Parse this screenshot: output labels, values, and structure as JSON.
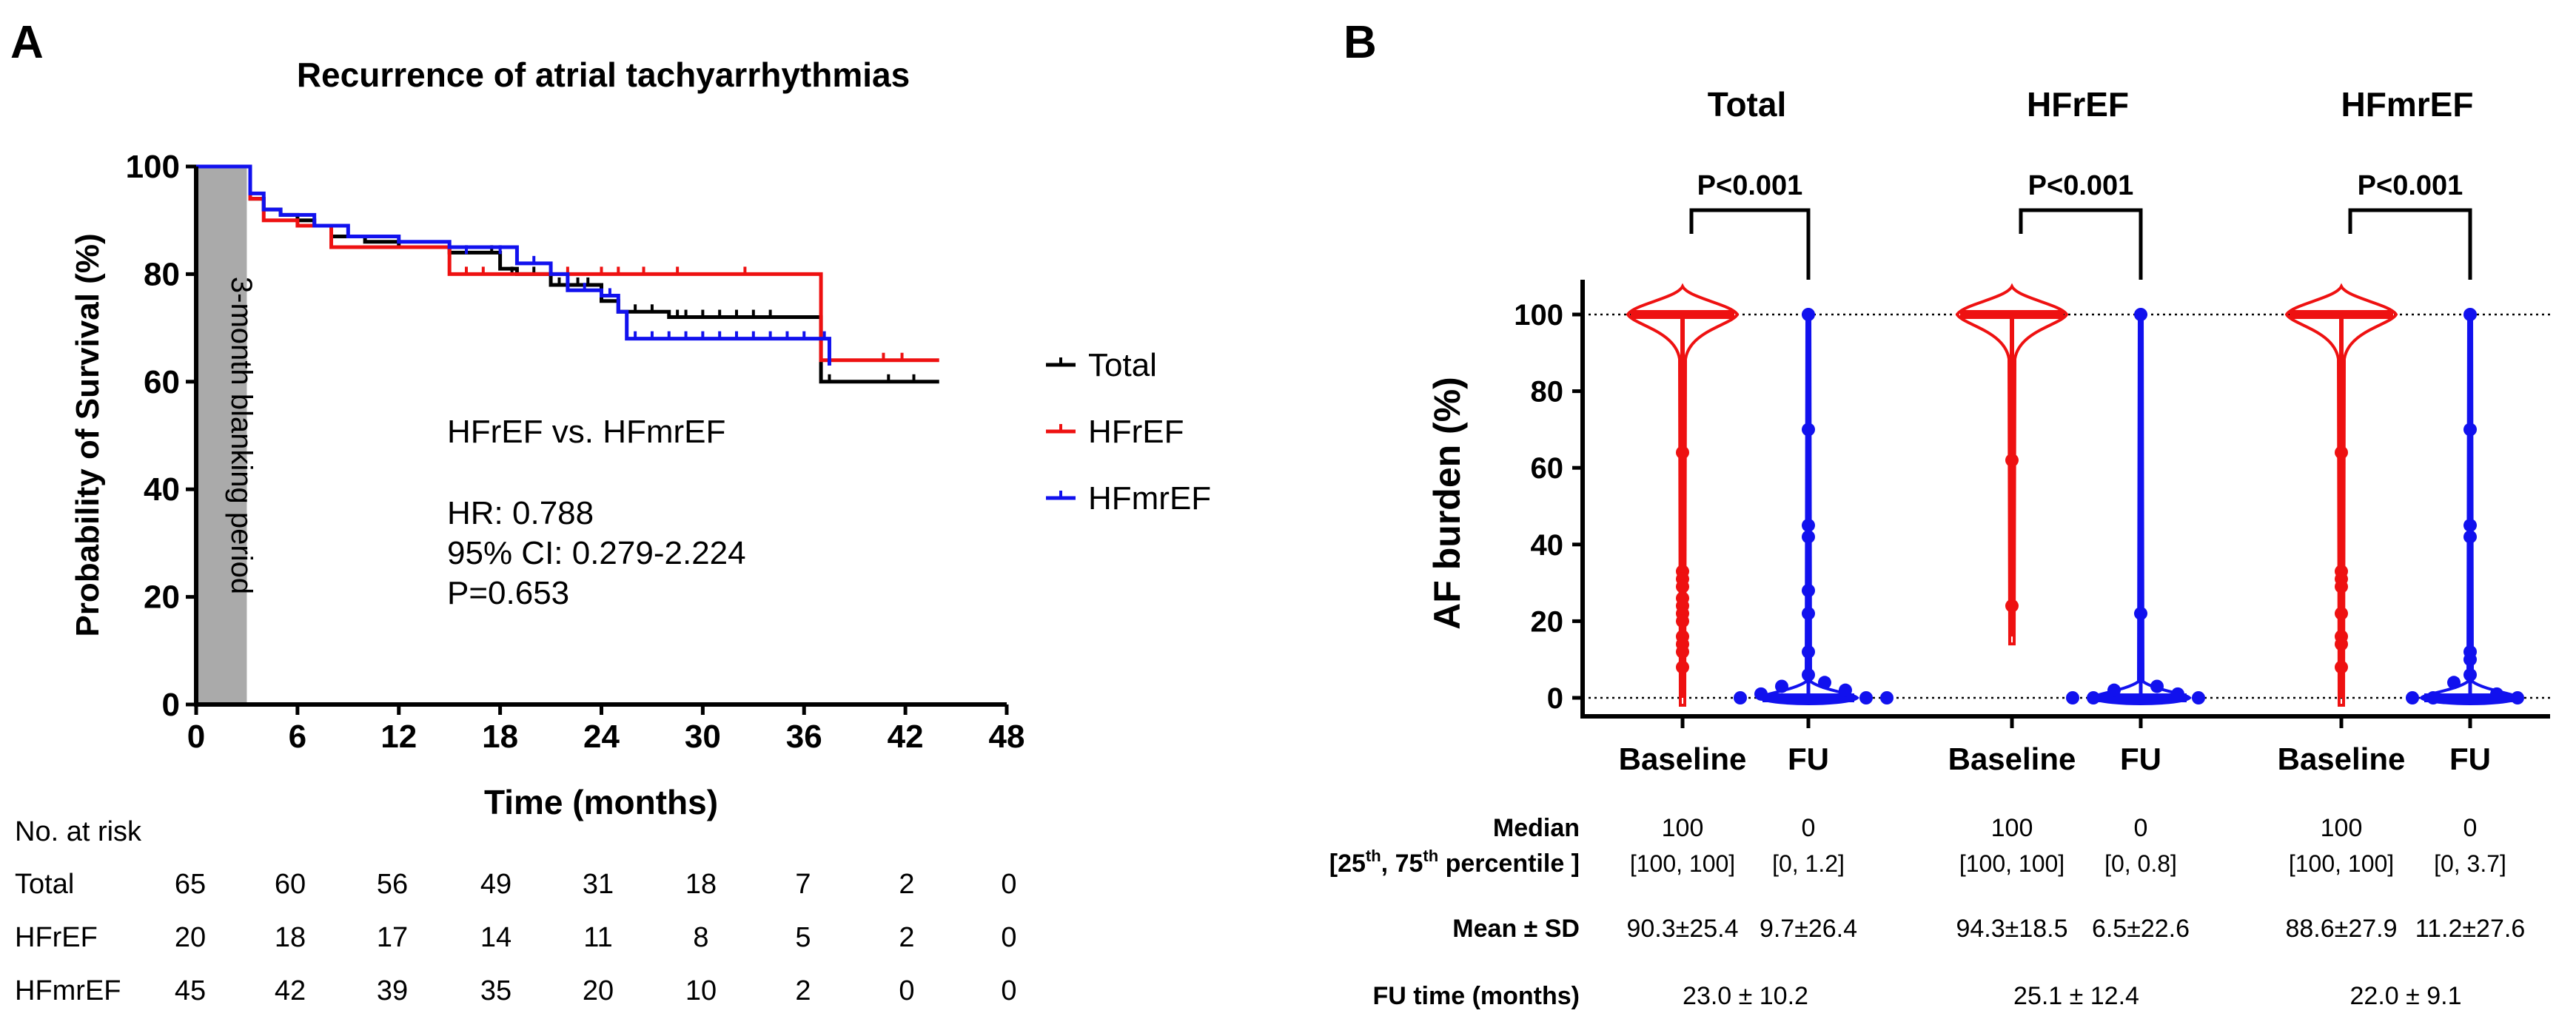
{
  "panel_a": {
    "label": "A",
    "risk_title": "No. at risk",
    "risk_rows": [
      {
        "name": "Total",
        "values": [
          "65",
          "60",
          "56",
          "49",
          "31",
          "18",
          "7",
          "2",
          "0"
        ]
      },
      {
        "name": "HFrEF",
        "values": [
          "20",
          "18",
          "17",
          "14",
          "11",
          "8",
          "5",
          "2",
          "0"
        ]
      },
      {
        "name": "HFmrEF",
        "values": [
          "45",
          "42",
          "39",
          "35",
          "20",
          "10",
          "2",
          "0",
          "0"
        ]
      }
    ]
  },
  "panel_b": {
    "label": "B",
    "stats": {
      "median_label": "Median",
      "percentile_label_1": "[25",
      "percentile_sup_1": "th",
      "percentile_label_2": ", 75",
      "percentile_sup_2": "th",
      "percentile_label_3": " percentile ]",
      "mean_label": "Mean ± SD",
      "fu_label": "FU time (months)",
      "columns": [
        {
          "median": "100",
          "iqr": "[100, 100]",
          "mean_sd": "90.3±25.4"
        },
        {
          "median": "0",
          "iqr": "[0, 1.2]",
          "mean_sd": "9.7±26.4"
        },
        {
          "median": "100",
          "iqr": "[100, 100]",
          "mean_sd": "94.3±18.5"
        },
        {
          "median": "0",
          "iqr": "[0, 0.8]",
          "mean_sd": "6.5±22.6"
        },
        {
          "median": "100",
          "iqr": "[100, 100]",
          "mean_sd": "88.6±27.9"
        },
        {
          "median": "0",
          "iqr": "[0, 3.7]",
          "mean_sd": "11.2±27.6"
        }
      ],
      "fu_times": [
        "23.0 ± 10.2",
        "25.1 ± 12.4",
        "22.0 ± 9.1"
      ]
    }
  },
  "chart_data": [
    {
      "type": "line",
      "subtype": "kaplan-meier",
      "title": "Recurrence of atrial tachyarrhythmias",
      "xlabel": "Time (months)",
      "ylabel": "Probability of Survival (%)",
      "xlim": [
        0,
        48
      ],
      "ylim": [
        0,
        100
      ],
      "xticks": [
        "0",
        "6",
        "12",
        "18",
        "24",
        "30",
        "36",
        "42",
        "48"
      ],
      "yticks": [
        "0",
        "20",
        "40",
        "60",
        "80",
        "100"
      ],
      "shaded_region": {
        "x": [
          0,
          3
        ],
        "label": "3-month blanking period"
      },
      "annotation": [
        "HFrEF vs. HFmrEF",
        "HR: 0.788",
        "95% CI: 0.279-2.224",
        "P=0.653"
      ],
      "series": [
        {
          "name": "Total",
          "color": "#000000",
          "steps": [
            [
              0,
              100
            ],
            [
              3,
              100
            ],
            [
              3.2,
              94
            ],
            [
              4,
              92
            ],
            [
              5,
              91
            ],
            [
              6,
              90
            ],
            [
              7,
              89
            ],
            [
              8,
              87
            ],
            [
              10,
              86
            ],
            [
              12,
              85
            ],
            [
              14,
              85
            ],
            [
              15,
              84
            ],
            [
              18,
              81
            ],
            [
              19,
              80
            ],
            [
              21,
              78
            ],
            [
              24,
              75
            ],
            [
              25,
              73
            ],
            [
              28,
              72
            ],
            [
              37,
              72
            ],
            [
              37,
              60
            ],
            [
              44,
              60
            ]
          ],
          "censors": [
            [
              17.5,
              84
            ],
            [
              18.7,
              80
            ],
            [
              20,
              80
            ],
            [
              21.5,
              78
            ],
            [
              22,
              78
            ],
            [
              22.6,
              78
            ],
            [
              23.2,
              78
            ],
            [
              26,
              73
            ],
            [
              27,
              73
            ],
            [
              28.5,
              72
            ],
            [
              29,
              72
            ],
            [
              30,
              72
            ],
            [
              31,
              72
            ],
            [
              32,
              72
            ],
            [
              33,
              72
            ],
            [
              34,
              72
            ],
            [
              37.5,
              60
            ],
            [
              41,
              60
            ],
            [
              42.5,
              60
            ]
          ]
        },
        {
          "name": "HFrEF",
          "color": "#ee1111",
          "steps": [
            [
              0,
              100
            ],
            [
              3,
              100
            ],
            [
              3.2,
              94
            ],
            [
              4,
              90
            ],
            [
              6,
              89
            ],
            [
              8,
              85
            ],
            [
              12,
              85
            ],
            [
              15,
              80
            ],
            [
              37,
              80
            ],
            [
              37,
              64
            ],
            [
              44,
              64
            ]
          ],
          "censors": [
            [
              16,
              80
            ],
            [
              17,
              80
            ],
            [
              21,
              80
            ],
            [
              22,
              80
            ],
            [
              24,
              80
            ],
            [
              25,
              80
            ],
            [
              26.5,
              80
            ],
            [
              28.5,
              80
            ],
            [
              32.5,
              80
            ],
            [
              40.7,
              64
            ],
            [
              41.8,
              64
            ]
          ]
        },
        {
          "name": "HFmrEF",
          "color": "#1111ee",
          "steps": [
            [
              0,
              100
            ],
            [
              3,
              100
            ],
            [
              3.2,
              95
            ],
            [
              4,
              92
            ],
            [
              5,
              91
            ],
            [
              7,
              89
            ],
            [
              9,
              87
            ],
            [
              12,
              86
            ],
            [
              15,
              85
            ],
            [
              19,
              82
            ],
            [
              21,
              80
            ],
            [
              22,
              77
            ],
            [
              24,
              76
            ],
            [
              25,
              73
            ],
            [
              25.5,
              68
            ],
            [
              37.5,
              68
            ],
            [
              37.5,
              63
            ]
          ],
          "censors": [
            [
              16,
              84
            ],
            [
              18,
              84
            ],
            [
              20,
              82
            ],
            [
              23,
              77
            ],
            [
              24.5,
              76
            ],
            [
              26,
              68
            ],
            [
              27,
              68
            ],
            [
              28,
              68
            ],
            [
              29,
              68
            ],
            [
              30,
              68
            ],
            [
              31,
              68
            ],
            [
              32,
              68
            ],
            [
              33,
              68
            ],
            [
              34,
              68
            ],
            [
              35,
              68
            ],
            [
              36,
              68
            ],
            [
              37.2,
              68
            ]
          ]
        }
      ]
    },
    {
      "type": "violin",
      "ylabel": "AF burden (%)",
      "ylim": [
        0,
        100
      ],
      "yticks": [
        "0",
        "20",
        "40",
        "60",
        "80",
        "100"
      ],
      "reference_lines": [
        0,
        100
      ],
      "groups": [
        {
          "title": "Total",
          "pvalue": "P<0.001",
          "categories": [
            "Baseline",
            "FU"
          ],
          "baseline_points": [
            100,
            64,
            33,
            31,
            29,
            26,
            24,
            22,
            20,
            16,
            14,
            12,
            8
          ],
          "fu_points": [
            100,
            70,
            45,
            42,
            28,
            22,
            12,
            6,
            4,
            3,
            2,
            1,
            0,
            0,
            0
          ]
        },
        {
          "title": "HFrEF",
          "pvalue": "P<0.001",
          "categories": [
            "Baseline",
            "FU"
          ],
          "baseline_points": [
            100,
            62,
            24
          ],
          "fu_points": [
            100,
            22,
            3,
            2,
            1,
            0,
            0,
            0
          ]
        },
        {
          "title": "HFmrEF",
          "pvalue": "P<0.001",
          "categories": [
            "Baseline",
            "FU"
          ],
          "baseline_points": [
            100,
            64,
            33,
            31,
            29,
            22,
            16,
            14,
            8
          ],
          "fu_points": [
            100,
            70,
            45,
            42,
            12,
            10,
            6,
            4,
            1,
            0,
            0,
            0
          ]
        }
      ]
    }
  ]
}
